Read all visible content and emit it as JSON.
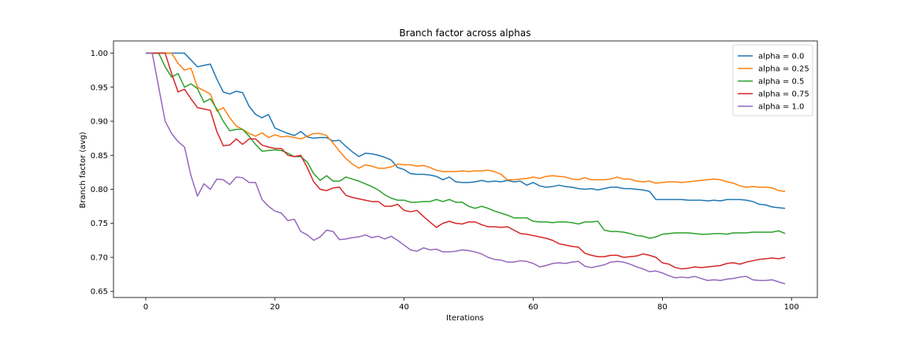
{
  "chart_data": {
    "type": "line",
    "title": "Branch factor across alphas",
    "xlabel": "Iterations",
    "ylabel": "Branch factor (avg)",
    "xlim": [
      -5,
      104
    ],
    "ylim": [
      0.641,
      1.018
    ],
    "xticks": [
      0,
      20,
      40,
      60,
      80,
      100
    ],
    "xtick_labels": [
      "0",
      "20",
      "40",
      "60",
      "80",
      "100"
    ],
    "yticks": [
      0.65,
      0.7,
      0.75,
      0.8,
      0.85,
      0.9,
      0.95,
      1.0
    ],
    "ytick_labels": [
      "0.65",
      "0.70",
      "0.75",
      "0.80",
      "0.85",
      "0.90",
      "0.95",
      "1.00"
    ],
    "grid": false,
    "legend_position": "top-right",
    "series": [
      {
        "name": "alpha = 0.0",
        "color": "#1f77b4",
        "x": [
          0,
          1,
          2,
          3,
          4,
          5,
          6,
          7,
          8,
          9,
          10,
          11,
          12,
          13,
          14,
          15,
          16,
          17,
          18,
          19,
          20,
          21,
          22,
          23,
          24,
          25,
          26,
          27,
          28,
          29,
          30,
          31,
          32,
          33,
          34,
          35,
          36,
          37,
          38,
          39,
          40,
          41,
          42,
          43,
          44,
          45,
          46,
          47,
          48,
          49,
          50,
          51,
          52,
          53,
          54,
          55,
          56,
          57,
          58,
          59,
          60,
          61,
          62,
          63,
          64,
          65,
          66,
          67,
          68,
          69,
          70,
          71,
          72,
          73,
          74,
          75,
          76,
          77,
          78,
          79,
          80,
          81,
          82,
          83,
          84,
          85,
          86,
          87,
          88,
          89,
          90,
          91,
          92,
          93,
          94,
          95,
          96,
          97,
          98,
          99
        ],
        "y": [
          1.0,
          1.0,
          1.0,
          1.0,
          1.0,
          1.0,
          1.0,
          0.99,
          0.98,
          0.982,
          0.984,
          0.962,
          0.943,
          0.94,
          0.944,
          0.942,
          0.922,
          0.91,
          0.905,
          0.91,
          0.89,
          0.886,
          0.882,
          0.879,
          0.885,
          0.877,
          0.875,
          0.876,
          0.876,
          0.871,
          0.872,
          0.863,
          0.855,
          0.848,
          0.853,
          0.852,
          0.85,
          0.847,
          0.843,
          0.832,
          0.829,
          0.823,
          0.822,
          0.822,
          0.821,
          0.819,
          0.814,
          0.818,
          0.811,
          0.81,
          0.81,
          0.811,
          0.813,
          0.811,
          0.812,
          0.811,
          0.813,
          0.811,
          0.812,
          0.806,
          0.81,
          0.805,
          0.803,
          0.804,
          0.806,
          0.804,
          0.803,
          0.801,
          0.8,
          0.801,
          0.799,
          0.801,
          0.803,
          0.803,
          0.801,
          0.801,
          0.8,
          0.799,
          0.797,
          0.785,
          0.785,
          0.785,
          0.785,
          0.785,
          0.784,
          0.784,
          0.784,
          0.783,
          0.784,
          0.783,
          0.785,
          0.785,
          0.785,
          0.784,
          0.782,
          0.778,
          0.777,
          0.774,
          0.773,
          0.772
        ]
      },
      {
        "name": "alpha = 0.25",
        "color": "#ff7f0e",
        "x": [
          0,
          1,
          2,
          3,
          4,
          5,
          6,
          7,
          8,
          9,
          10,
          11,
          12,
          13,
          14,
          15,
          16,
          17,
          18,
          19,
          20,
          21,
          22,
          23,
          24,
          25,
          26,
          27,
          28,
          29,
          30,
          31,
          32,
          33,
          34,
          35,
          36,
          37,
          38,
          39,
          40,
          41,
          42,
          43,
          44,
          45,
          46,
          47,
          48,
          49,
          50,
          51,
          52,
          53,
          54,
          55,
          56,
          57,
          58,
          59,
          60,
          61,
          62,
          63,
          64,
          65,
          66,
          67,
          68,
          69,
          70,
          71,
          72,
          73,
          74,
          75,
          76,
          77,
          78,
          79,
          80,
          81,
          82,
          83,
          84,
          85,
          86,
          87,
          88,
          89,
          90,
          91,
          92,
          93,
          94,
          95,
          96,
          97,
          98,
          99
        ],
        "y": [
          1.0,
          1.0,
          1.0,
          1.0,
          1.0,
          0.985,
          0.975,
          0.978,
          0.95,
          0.945,
          0.94,
          0.915,
          0.92,
          0.905,
          0.893,
          0.888,
          0.882,
          0.878,
          0.883,
          0.876,
          0.88,
          0.877,
          0.878,
          0.876,
          0.874,
          0.878,
          0.882,
          0.882,
          0.879,
          0.868,
          0.856,
          0.845,
          0.837,
          0.831,
          0.836,
          0.834,
          0.831,
          0.831,
          0.833,
          0.837,
          0.836,
          0.836,
          0.834,
          0.835,
          0.832,
          0.828,
          0.826,
          0.826,
          0.826,
          0.827,
          0.826,
          0.827,
          0.827,
          0.828,
          0.826,
          0.822,
          0.814,
          0.814,
          0.815,
          0.816,
          0.818,
          0.816,
          0.819,
          0.82,
          0.819,
          0.818,
          0.815,
          0.814,
          0.817,
          0.814,
          0.814,
          0.814,
          0.815,
          0.818,
          0.815,
          0.815,
          0.812,
          0.811,
          0.812,
          0.809,
          0.81,
          0.811,
          0.811,
          0.81,
          0.811,
          0.812,
          0.813,
          0.814,
          0.815,
          0.814,
          0.811,
          0.809,
          0.805,
          0.803,
          0.804,
          0.803,
          0.803,
          0.802,
          0.798,
          0.797
        ]
      },
      {
        "name": "alpha = 0.5",
        "color": "#2ca02c",
        "x": [
          0,
          1,
          2,
          3,
          4,
          5,
          6,
          7,
          8,
          9,
          10,
          11,
          12,
          13,
          14,
          15,
          16,
          17,
          18,
          19,
          20,
          21,
          22,
          23,
          24,
          25,
          26,
          27,
          28,
          29,
          30,
          31,
          32,
          33,
          34,
          35,
          36,
          37,
          38,
          39,
          40,
          41,
          42,
          43,
          44,
          45,
          46,
          47,
          48,
          49,
          50,
          51,
          52,
          53,
          54,
          55,
          56,
          57,
          58,
          59,
          60,
          61,
          62,
          63,
          64,
          65,
          66,
          67,
          68,
          69,
          70,
          71,
          72,
          73,
          74,
          75,
          76,
          77,
          78,
          79,
          80,
          81,
          82,
          83,
          84,
          85,
          86,
          87,
          88,
          89,
          90,
          91,
          92,
          93,
          94,
          95,
          96,
          97,
          98,
          99
        ],
        "y": [
          1.0,
          1.0,
          1.0,
          0.98,
          0.965,
          0.97,
          0.95,
          0.955,
          0.948,
          0.928,
          0.933,
          0.918,
          0.9,
          0.886,
          0.888,
          0.888,
          0.878,
          0.866,
          0.856,
          0.857,
          0.858,
          0.857,
          0.853,
          0.848,
          0.848,
          0.84,
          0.823,
          0.813,
          0.82,
          0.812,
          0.812,
          0.818,
          0.815,
          0.812,
          0.808,
          0.804,
          0.799,
          0.792,
          0.787,
          0.784,
          0.784,
          0.781,
          0.781,
          0.782,
          0.782,
          0.785,
          0.782,
          0.785,
          0.781,
          0.781,
          0.775,
          0.772,
          0.775,
          0.772,
          0.768,
          0.765,
          0.762,
          0.758,
          0.758,
          0.758,
          0.753,
          0.752,
          0.752,
          0.751,
          0.752,
          0.752,
          0.751,
          0.749,
          0.752,
          0.752,
          0.753,
          0.74,
          0.738,
          0.738,
          0.737,
          0.735,
          0.732,
          0.731,
          0.728,
          0.73,
          0.734,
          0.735,
          0.736,
          0.736,
          0.736,
          0.735,
          0.734,
          0.734,
          0.735,
          0.735,
          0.734,
          0.736,
          0.736,
          0.736,
          0.737,
          0.737,
          0.737,
          0.737,
          0.739,
          0.735
        ]
      },
      {
        "name": "alpha = 0.75",
        "color": "#d62728",
        "x": [
          0,
          1,
          2,
          3,
          4,
          5,
          6,
          7,
          8,
          9,
          10,
          11,
          12,
          13,
          14,
          15,
          16,
          17,
          18,
          19,
          20,
          21,
          22,
          23,
          24,
          25,
          26,
          27,
          28,
          29,
          30,
          31,
          32,
          33,
          34,
          35,
          36,
          37,
          38,
          39,
          40,
          41,
          42,
          43,
          44,
          45,
          46,
          47,
          48,
          49,
          50,
          51,
          52,
          53,
          54,
          55,
          56,
          57,
          58,
          59,
          60,
          61,
          62,
          63,
          64,
          65,
          66,
          67,
          68,
          69,
          70,
          71,
          72,
          73,
          74,
          75,
          76,
          77,
          78,
          79,
          80,
          81,
          82,
          83,
          84,
          85,
          86,
          87,
          88,
          89,
          90,
          91,
          92,
          93,
          94,
          95,
          96,
          97,
          98,
          99
        ],
        "y": [
          1.0,
          1.0,
          1.0,
          1.0,
          0.97,
          0.943,
          0.947,
          0.933,
          0.92,
          0.918,
          0.916,
          0.885,
          0.864,
          0.865,
          0.874,
          0.866,
          0.874,
          0.874,
          0.865,
          0.862,
          0.86,
          0.86,
          0.85,
          0.848,
          0.85,
          0.832,
          0.811,
          0.8,
          0.798,
          0.802,
          0.803,
          0.791,
          0.788,
          0.786,
          0.784,
          0.782,
          0.782,
          0.775,
          0.775,
          0.778,
          0.769,
          0.767,
          0.769,
          0.76,
          0.752,
          0.744,
          0.75,
          0.753,
          0.75,
          0.749,
          0.752,
          0.752,
          0.748,
          0.745,
          0.745,
          0.744,
          0.745,
          0.74,
          0.735,
          0.734,
          0.732,
          0.73,
          0.728,
          0.725,
          0.72,
          0.718,
          0.716,
          0.715,
          0.706,
          0.703,
          0.701,
          0.701,
          0.703,
          0.703,
          0.7,
          0.701,
          0.702,
          0.705,
          0.703,
          0.7,
          0.692,
          0.69,
          0.685,
          0.683,
          0.684,
          0.686,
          0.685,
          0.686,
          0.687,
          0.688,
          0.691,
          0.692,
          0.69,
          0.693,
          0.695,
          0.697,
          0.698,
          0.699,
          0.698,
          0.7
        ]
      },
      {
        "name": "alpha = 1.0",
        "color": "#9467bd",
        "x": [
          0,
          1,
          2,
          3,
          4,
          5,
          6,
          7,
          8,
          9,
          10,
          11,
          12,
          13,
          14,
          15,
          16,
          17,
          18,
          19,
          20,
          21,
          22,
          23,
          24,
          25,
          26,
          27,
          28,
          29,
          30,
          31,
          32,
          33,
          34,
          35,
          36,
          37,
          38,
          39,
          40,
          41,
          42,
          43,
          44,
          45,
          46,
          47,
          48,
          49,
          50,
          51,
          52,
          53,
          54,
          55,
          56,
          57,
          58,
          59,
          60,
          61,
          62,
          63,
          64,
          65,
          66,
          67,
          68,
          69,
          70,
          71,
          72,
          73,
          74,
          75,
          76,
          77,
          78,
          79,
          80,
          81,
          82,
          83,
          84,
          85,
          86,
          87,
          88,
          89,
          90,
          91,
          92,
          93,
          94,
          95,
          96,
          97,
          98,
          99
        ],
        "y": [
          1.0,
          1.0,
          0.95,
          0.9,
          0.882,
          0.87,
          0.862,
          0.82,
          0.79,
          0.808,
          0.8,
          0.815,
          0.814,
          0.807,
          0.818,
          0.817,
          0.81,
          0.81,
          0.785,
          0.775,
          0.768,
          0.765,
          0.754,
          0.756,
          0.738,
          0.733,
          0.725,
          0.73,
          0.74,
          0.738,
          0.726,
          0.727,
          0.729,
          0.73,
          0.733,
          0.729,
          0.731,
          0.727,
          0.731,
          0.725,
          0.718,
          0.711,
          0.709,
          0.714,
          0.711,
          0.712,
          0.708,
          0.708,
          0.709,
          0.711,
          0.71,
          0.708,
          0.705,
          0.7,
          0.697,
          0.696,
          0.693,
          0.693,
          0.695,
          0.694,
          0.691,
          0.686,
          0.688,
          0.691,
          0.692,
          0.691,
          0.693,
          0.694,
          0.687,
          0.685,
          0.687,
          0.689,
          0.693,
          0.694,
          0.693,
          0.69,
          0.686,
          0.683,
          0.679,
          0.68,
          0.677,
          0.673,
          0.67,
          0.671,
          0.67,
          0.672,
          0.669,
          0.666,
          0.667,
          0.666,
          0.668,
          0.669,
          0.671,
          0.672,
          0.667,
          0.666,
          0.666,
          0.667,
          0.664,
          0.661
        ]
      }
    ]
  }
}
